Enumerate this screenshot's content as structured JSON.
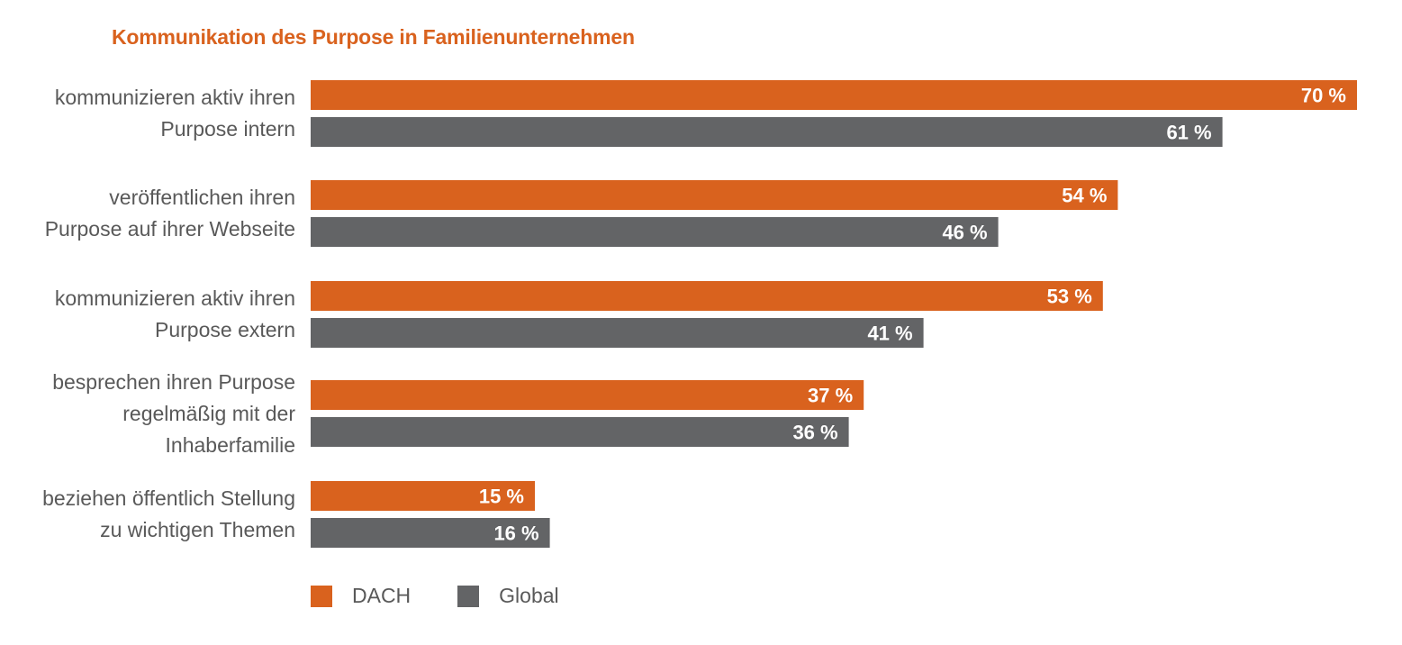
{
  "chart_data": {
    "type": "bar",
    "orientation": "horizontal",
    "title": "Kommunikation des Purpose in Familienunternehmen",
    "categories": [
      [
        "kommunizieren aktiv ihren",
        "Purpose intern"
      ],
      [
        "veröffentlichen ihren",
        "Purpose auf ihrer Webseite"
      ],
      [
        "kommunizieren aktiv ihren",
        "Purpose extern"
      ],
      [
        "besprechen ihren Purpose",
        "regelmäßig mit der",
        "Inhaberfamilie"
      ],
      [
        "beziehen öffentlich Stellung",
        "zu wichtigen Themen"
      ]
    ],
    "series": [
      {
        "name": "DACH",
        "color": "#D9621E",
        "values": [
          70,
          54,
          53,
          37,
          15
        ],
        "labels": [
          "70 %",
          "54 %",
          "53 %",
          "37 %",
          "15 %"
        ]
      },
      {
        "name": "Global",
        "color": "#636466",
        "values": [
          61,
          46,
          41,
          36,
          16
        ],
        "labels": [
          "61 %",
          "46 %",
          "41 %",
          "36 %",
          "16 %"
        ]
      }
    ],
    "xlim": [
      0,
      70
    ],
    "grid": false,
    "legend_position": "bottom-left"
  }
}
